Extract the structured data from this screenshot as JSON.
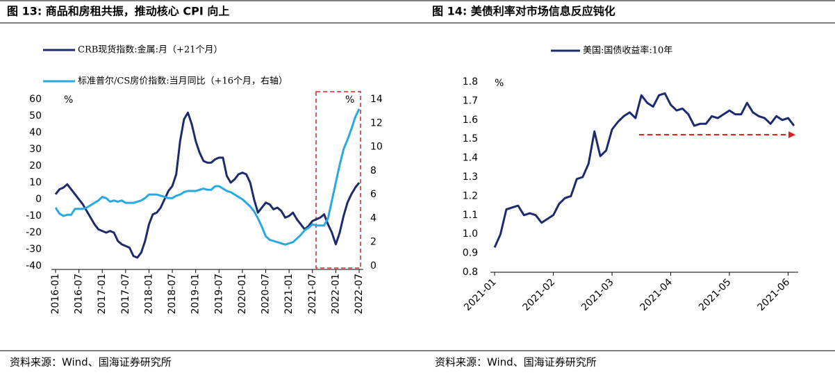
{
  "chart_data": [
    {
      "type": "line",
      "title": "图 13:   商品和房租共振，推动核心 CPI 向上",
      "source": "资料来源：Wind、国海证券研究所",
      "y_unit": "%",
      "y2_unit": "%",
      "categories": [
        "2016-01",
        null,
        null,
        null,
        null,
        null,
        "2016-07",
        null,
        null,
        null,
        null,
        null,
        "2017-01",
        null,
        null,
        null,
        null,
        null,
        "2017-07",
        null,
        null,
        null,
        null,
        null,
        "2018-01",
        null,
        null,
        null,
        null,
        null,
        "2018-07",
        null,
        null,
        null,
        null,
        null,
        "2019-01",
        null,
        null,
        null,
        null,
        null,
        "2019-07",
        null,
        null,
        null,
        null,
        null,
        "2020-01",
        null,
        null,
        null,
        null,
        null,
        "2020-07",
        null,
        null,
        null,
        null,
        null,
        "2021-01",
        null,
        null,
        null,
        null,
        null,
        "2021-07",
        null,
        null,
        null,
        null,
        null,
        "2022-01",
        null,
        null,
        null,
        null,
        null,
        "2022-07"
      ],
      "series": [
        {
          "name": "CRB现货指数:金属:月（+21个月）",
          "color": "#1c2a6e",
          "values": [
            3,
            6,
            7,
            9,
            6,
            3,
            0,
            -3,
            -7,
            -11,
            -15,
            -18,
            -19,
            -20,
            -19,
            -20,
            -25,
            -27,
            -28,
            -29,
            -34,
            -35,
            -32,
            -25,
            -15,
            -9,
            -8,
            -5,
            0,
            5,
            8,
            15,
            35,
            48,
            52,
            45,
            35,
            28,
            23,
            22,
            22,
            24,
            25,
            25,
            14,
            10,
            12,
            15,
            16,
            15,
            10,
            0,
            -8,
            -5,
            -2,
            -3,
            -6,
            -5,
            -7,
            -11,
            -10,
            -8,
            -12,
            -15,
            -18,
            -16,
            -13,
            -12,
            -11,
            -9,
            -15,
            -20,
            -27,
            -20,
            -10,
            -2,
            3,
            7,
            10
          ]
        },
        {
          "name": "标准普尔/CS房价指数:当月同比（+16个月，右轴）",
          "color": "#2aa8e0",
          "axis": "y2",
          "values": [
            4.9,
            4.4,
            4.2,
            4.3,
            4.3,
            4.8,
            4.8,
            4.8,
            4.9,
            5.1,
            5.3,
            5.5,
            5.8,
            5.7,
            5.4,
            5.5,
            5.4,
            5.5,
            5.3,
            5.3,
            5.3,
            5.4,
            5.5,
            5.7,
            6.0,
            6.0,
            6.0,
            5.9,
            5.8,
            5.7,
            5.7,
            5.9,
            6.0,
            6.2,
            6.3,
            6.3,
            6.3,
            6.4,
            6.5,
            6.4,
            6.4,
            6.7,
            6.7,
            6.5,
            6.3,
            6.2,
            6.0,
            5.8,
            5.6,
            5.3,
            5.0,
            4.6,
            4.0,
            3.3,
            2.5,
            2.2,
            2.1,
            2.0,
            1.9,
            1.8,
            1.9,
            2.0,
            2.3,
            2.6,
            3.0,
            3.2,
            3.5,
            3.4,
            3.4,
            3.4,
            4.0,
            5.5,
            7.0,
            8.5,
            9.8,
            10.6,
            11.5,
            12.5,
            13.2
          ]
        }
      ],
      "ylim": [
        -40,
        60
      ],
      "yticks": [
        -40,
        -30,
        -20,
        -10,
        0,
        10,
        20,
        30,
        40,
        50,
        60
      ],
      "y2lim": [
        0,
        14
      ],
      "y2ticks": [
        0,
        2,
        4,
        6,
        8,
        10,
        12,
        14
      ]
    },
    {
      "type": "line",
      "title": "图 14:   美债利率对市场信息反应钝化",
      "source": "资料来源：Wind、国海证券研究所",
      "y_unit": "%",
      "categories": [
        "2021-01",
        null,
        null,
        null,
        null,
        null,
        null,
        null,
        null,
        null,
        "2021-02",
        null,
        null,
        null,
        null,
        null,
        null,
        null,
        null,
        null,
        "2021-03",
        null,
        null,
        null,
        null,
        null,
        null,
        null,
        null,
        null,
        "2021-04",
        null,
        null,
        null,
        null,
        null,
        null,
        null,
        null,
        null,
        "2021-05",
        null,
        null,
        null,
        null,
        null,
        null,
        null,
        null,
        null,
        "2021-06",
        null
      ],
      "series": [
        {
          "name": "美国:国债收益率:10年",
          "color": "#1c2a6e",
          "values": [
            0.93,
            1.0,
            1.13,
            1.14,
            1.15,
            1.1,
            1.11,
            1.1,
            1.06,
            1.08,
            1.1,
            1.16,
            1.19,
            1.2,
            1.29,
            1.3,
            1.37,
            1.54,
            1.41,
            1.44,
            1.55,
            1.59,
            1.62,
            1.64,
            1.61,
            1.73,
            1.69,
            1.67,
            1.73,
            1.74,
            1.68,
            1.65,
            1.66,
            1.63,
            1.57,
            1.58,
            1.58,
            1.62,
            1.61,
            1.63,
            1.65,
            1.63,
            1.63,
            1.69,
            1.64,
            1.62,
            1.61,
            1.58,
            1.62,
            1.6,
            1.61,
            1.57
          ]
        }
      ],
      "ylim": [
        0.8,
        1.8
      ],
      "yticks": [
        0.8,
        0.9,
        {
          "value": 1,
          "label": "1.0"
        },
        1.1,
        1.2,
        1.3,
        1.4,
        1.5,
        1.6,
        1.7,
        1.8
      ]
    }
  ]
}
